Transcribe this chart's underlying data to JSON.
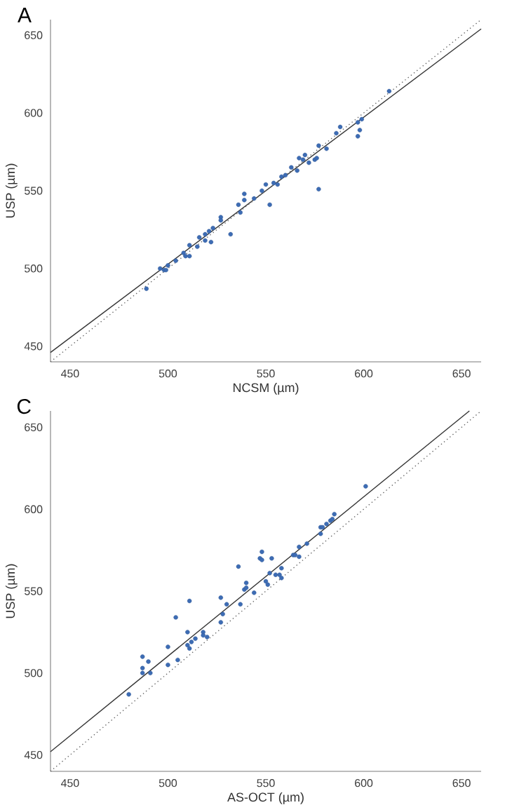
{
  "chart_data": [
    {
      "type": "scatter",
      "title": "A",
      "xlabel": "NCSM (µm)",
      "ylabel": "USP (µm)",
      "xlim": [
        440,
        660
      ],
      "ylim": [
        440,
        660
      ],
      "xticks": [
        450,
        500,
        550,
        600,
        650
      ],
      "yticks": [
        450,
        500,
        550,
        600,
        650
      ],
      "series": [
        {
          "marker": "circle",
          "color": "#3d6cb4",
          "x": [
            489,
            496,
            498,
            500,
            499,
            504,
            508,
            509,
            511,
            511,
            515,
            516,
            519,
            519,
            521,
            522,
            523,
            527,
            527,
            532,
            536,
            537,
            539,
            539,
            544,
            548,
            550,
            552,
            554,
            556,
            558,
            560,
            563,
            566,
            567,
            569,
            570,
            572,
            575,
            576,
            577,
            577,
            581,
            586,
            588,
            597,
            597,
            598,
            599,
            613
          ],
          "values": [
            487,
            500,
            499,
            502,
            499,
            505,
            510,
            508,
            508,
            515,
            514,
            520,
            522,
            518,
            524,
            517,
            526,
            533,
            531,
            522,
            541,
            536,
            544,
            548,
            545,
            550,
            554,
            541,
            555,
            554,
            559,
            560,
            565,
            563,
            571,
            570,
            573,
            568,
            570,
            571,
            579,
            551,
            577,
            587,
            591,
            594,
            585,
            589,
            596,
            614
          ]
        },
        {
          "type": "line",
          "marker": "none",
          "line_style": "solid",
          "color": "#333333",
          "x": [
            440,
            660
          ],
          "values": [
            446,
            654
          ]
        },
        {
          "type": "line",
          "marker": "none",
          "line_style": "dotted",
          "color": "#666666",
          "x": [
            440,
            660
          ],
          "values": [
            440,
            660
          ]
        }
      ]
    },
    {
      "type": "scatter",
      "title": "C",
      "xlabel": "AS-OCT (µm)",
      "ylabel": "USP (µm)",
      "xlim": [
        440,
        660
      ],
      "ylim": [
        440,
        660
      ],
      "xticks": [
        450,
        500,
        550,
        600,
        650
      ],
      "yticks": [
        450,
        500,
        550,
        600,
        650
      ],
      "series": [
        {
          "marker": "circle",
          "color": "#3d6cb4",
          "x": [
            480,
            487,
            487,
            487,
            490,
            491,
            500,
            500,
            504,
            505,
            510,
            511,
            510,
            511,
            512,
            514,
            518,
            518,
            520,
            527,
            527,
            528,
            530,
            536,
            537,
            539,
            540,
            540,
            544,
            547,
            548,
            548,
            550,
            551,
            552,
            553,
            555,
            557,
            558,
            558,
            564,
            565,
            567,
            567,
            571,
            578,
            578,
            579,
            581,
            583,
            584,
            585,
            601
          ],
          "values": [
            487,
            510,
            503,
            500,
            507,
            500,
            516,
            505,
            534,
            508,
            525,
            544,
            517,
            515,
            519,
            521,
            525,
            523,
            522,
            546,
            531,
            536,
            542,
            565,
            542,
            551,
            552,
            555,
            549,
            570,
            574,
            569,
            556,
            554,
            561,
            570,
            560,
            560,
            564,
            558,
            572,
            572,
            577,
            571,
            579,
            585,
            589,
            589,
            591,
            593,
            594,
            597,
            614
          ]
        },
        {
          "type": "line",
          "marker": "none",
          "line_style": "solid",
          "color": "#333333",
          "x": [
            440,
            654
          ],
          "values": [
            452,
            660
          ]
        },
        {
          "type": "line",
          "marker": "none",
          "line_style": "dotted",
          "color": "#666666",
          "x": [
            440,
            660
          ],
          "values": [
            440,
            660
          ]
        }
      ]
    }
  ]
}
